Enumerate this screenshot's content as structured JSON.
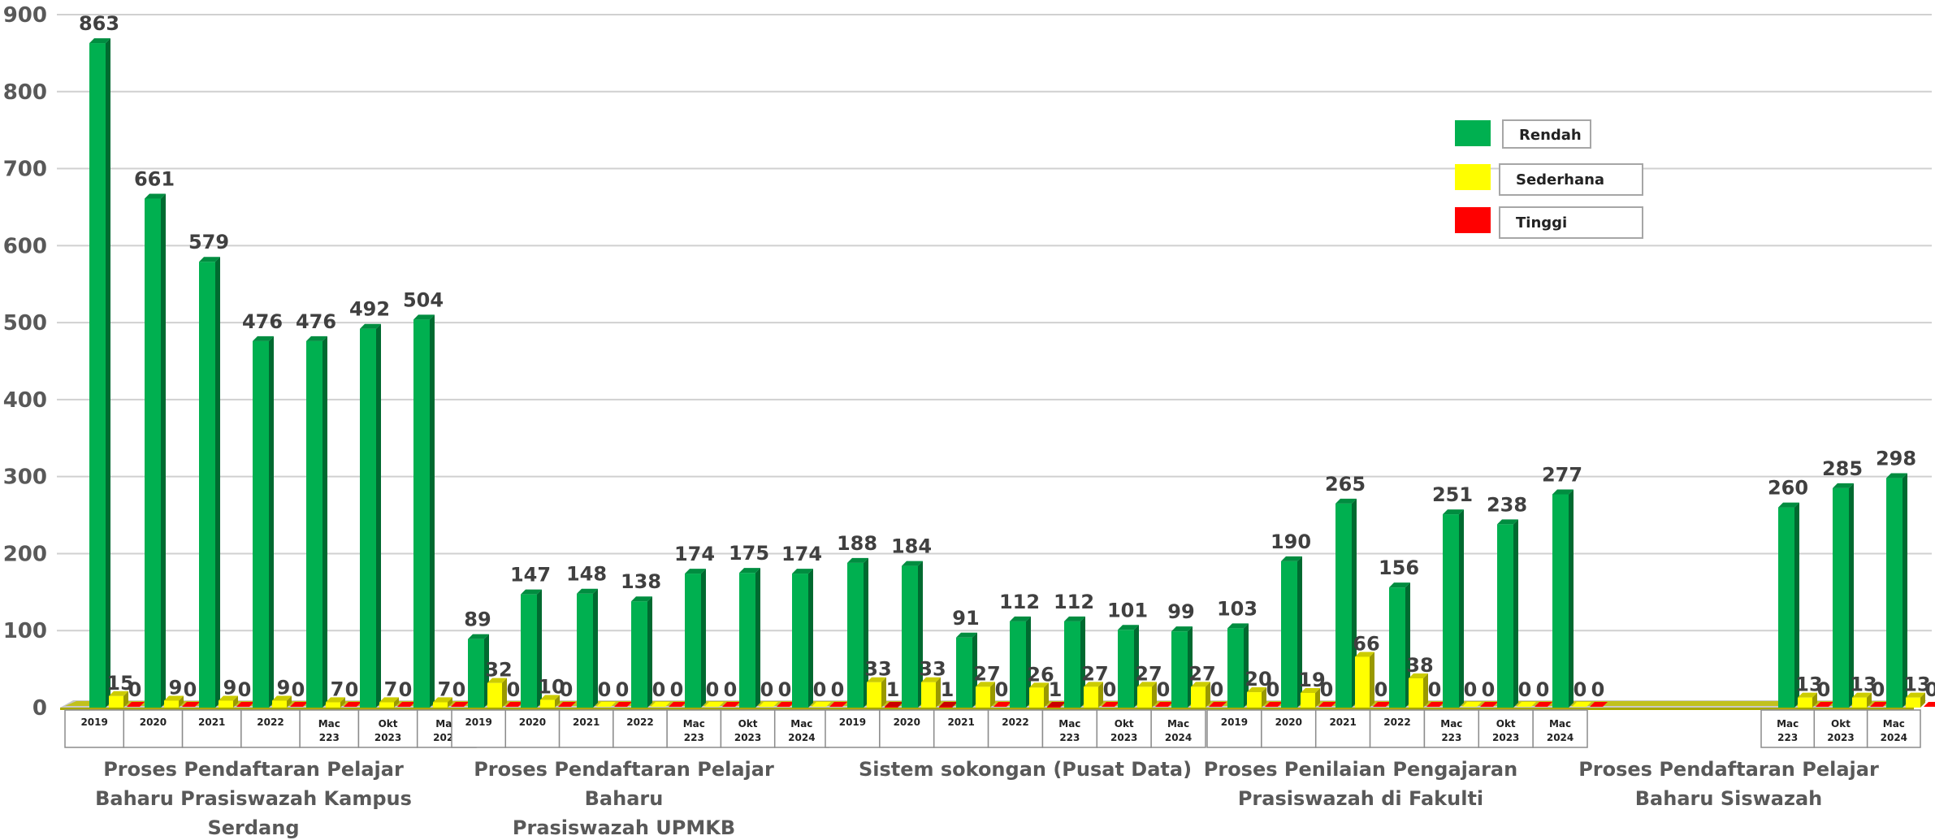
{
  "chart_data": {
    "type": "bar",
    "ylim": [
      0,
      900
    ],
    "yticks": [
      0,
      100,
      200,
      300,
      400,
      500,
      600,
      700,
      800,
      900
    ],
    "grid": true,
    "legend_position": "top-right",
    "series": [
      {
        "name": "Rendah",
        "color": "#00B050"
      },
      {
        "name": "Sederhana",
        "color": "#FFFF00"
      },
      {
        "name": "Tinggi",
        "color": "#FF0000"
      }
    ],
    "groups": [
      {
        "title": [
          "Proses Pendaftaran Pelajar",
          "Baharu  Prasiswazah Kampus",
          "Serdang"
        ],
        "categories": [
          [
            "2019"
          ],
          [
            "2020"
          ],
          [
            "2021"
          ],
          [
            "2022"
          ],
          [
            "Mac",
            "223"
          ],
          [
            "Okt",
            "2023"
          ],
          [
            "Mac",
            "2024"
          ]
        ],
        "rendah": [
          863,
          661,
          579,
          476,
          476,
          492,
          504
        ],
        "sederhana": [
          15,
          9,
          9,
          9,
          7,
          7,
          7
        ],
        "tinggi": [
          0,
          0,
          0,
          0,
          0,
          0,
          0
        ]
      },
      {
        "title": [
          "Proses Pendaftaran Pelajar",
          "Baharu",
          "Prasiswazah UPMKB"
        ],
        "categories": [
          [
            "2019"
          ],
          [
            "2020"
          ],
          [
            "2021"
          ],
          [
            "2022"
          ],
          [
            "Mac",
            "223"
          ],
          [
            "Okt",
            "2023"
          ],
          [
            "Mac",
            "2024"
          ]
        ],
        "rendah": [
          89,
          147,
          148,
          138,
          174,
          175,
          174
        ],
        "sederhana": [
          32,
          10,
          0,
          0,
          0,
          0,
          0
        ],
        "tinggi": [
          0,
          0,
          0,
          0,
          0,
          0,
          0
        ]
      },
      {
        "title": [
          "Sistem sokongan (Pusat Data)"
        ],
        "categories": [
          [
            "2019"
          ],
          [
            "2020"
          ],
          [
            "2021"
          ],
          [
            "2022"
          ],
          [
            "Mac",
            "223"
          ],
          [
            "Okt",
            "2023"
          ],
          [
            "Mac",
            "2024"
          ]
        ],
        "rendah": [
          188,
          184,
          91,
          112,
          112,
          101,
          99
        ],
        "sederhana": [
          33,
          33,
          27,
          26,
          27,
          27,
          27
        ],
        "tinggi": [
          1,
          1,
          0,
          1,
          0,
          0,
          0
        ]
      },
      {
        "title": [
          "Proses Penilaian Pengajaran",
          "Prasiswazah di Fakulti"
        ],
        "categories": [
          [
            "2019"
          ],
          [
            "2020"
          ],
          [
            "2021"
          ],
          [
            "2022"
          ],
          [
            "Mac",
            "223"
          ],
          [
            "Okt",
            "2023"
          ],
          [
            "Mac",
            "2024"
          ]
        ],
        "rendah": [
          103,
          190,
          265,
          156,
          251,
          238,
          277
        ],
        "sederhana": [
          20,
          19,
          66,
          38,
          0,
          0,
          0
        ],
        "tinggi": [
          0,
          0,
          0,
          0,
          0,
          0,
          0
        ]
      },
      {
        "title": [
          "Proses Pendaftaran Pelajar",
          "Baharu Siswazah"
        ],
        "categories": [
          [
            "Mac",
            "223"
          ],
          [
            "Okt",
            "2023"
          ],
          [
            "Mac",
            "2024"
          ]
        ],
        "rendah": [
          260,
          285,
          298
        ],
        "sederhana": [
          13,
          13,
          13
        ],
        "tinggi": [
          0,
          0,
          0
        ]
      }
    ]
  }
}
